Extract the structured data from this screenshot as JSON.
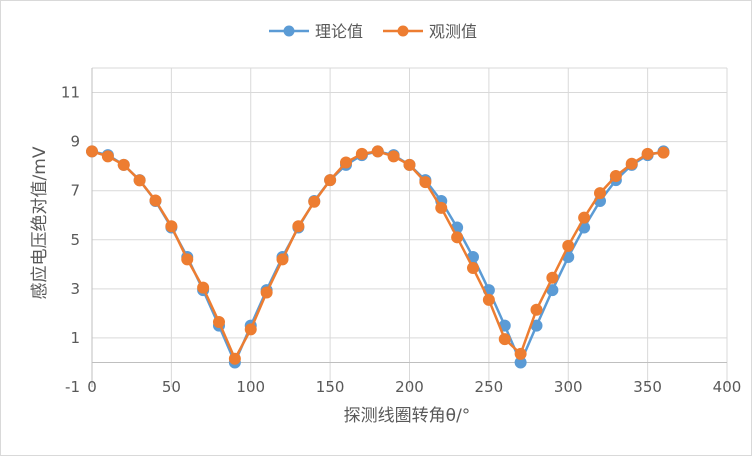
{
  "chart_data": {
    "type": "line",
    "title": "",
    "xlabel": "探测线圈转角θ/°",
    "ylabel": "感应电压绝对值/mV",
    "xlim": [
      0,
      400
    ],
    "ylim": [
      -1,
      12
    ],
    "x_ticks": [
      0,
      50,
      100,
      150,
      200,
      250,
      300,
      350,
      400
    ],
    "y_ticks": [
      -1,
      1,
      3,
      5,
      7,
      9,
      11
    ],
    "grid": true,
    "legend_position": "top",
    "series": [
      {
        "name": "理论值",
        "color": "#5b9bd5",
        "x": [
          0,
          10,
          20,
          30,
          40,
          50,
          60,
          70,
          80,
          90,
          100,
          110,
          120,
          130,
          140,
          150,
          160,
          170,
          180,
          190,
          200,
          210,
          220,
          230,
          240,
          250,
          260,
          270,
          280,
          290,
          300,
          310,
          320,
          330,
          340,
          350,
          360
        ],
        "y": [
          8.6,
          8.45,
          8.05,
          7.43,
          6.58,
          5.5,
          4.3,
          2.95,
          1.5,
          0.0,
          1.5,
          2.95,
          4.3,
          5.5,
          6.58,
          7.43,
          8.05,
          8.45,
          8.6,
          8.45,
          8.05,
          7.43,
          6.58,
          5.5,
          4.3,
          2.95,
          1.5,
          0.0,
          1.5,
          2.95,
          4.3,
          5.5,
          6.58,
          7.43,
          8.05,
          8.45,
          8.6
        ]
      },
      {
        "name": "观测值",
        "color": "#ed7d31",
        "x": [
          0,
          10,
          20,
          30,
          40,
          50,
          60,
          70,
          80,
          90,
          100,
          110,
          120,
          130,
          140,
          150,
          160,
          170,
          180,
          190,
          200,
          210,
          220,
          230,
          240,
          250,
          260,
          270,
          280,
          290,
          300,
          310,
          320,
          330,
          340,
          350,
          360
        ],
        "y": [
          8.6,
          8.4,
          8.05,
          7.42,
          6.6,
          5.55,
          4.2,
          3.05,
          1.65,
          0.15,
          1.35,
          2.85,
          4.2,
          5.55,
          6.55,
          7.43,
          8.15,
          8.5,
          8.6,
          8.4,
          8.05,
          7.35,
          6.3,
          5.1,
          3.85,
          2.55,
          0.95,
          0.35,
          2.15,
          3.45,
          4.75,
          5.9,
          6.9,
          7.6,
          8.1,
          8.5,
          8.55
        ]
      }
    ]
  }
}
